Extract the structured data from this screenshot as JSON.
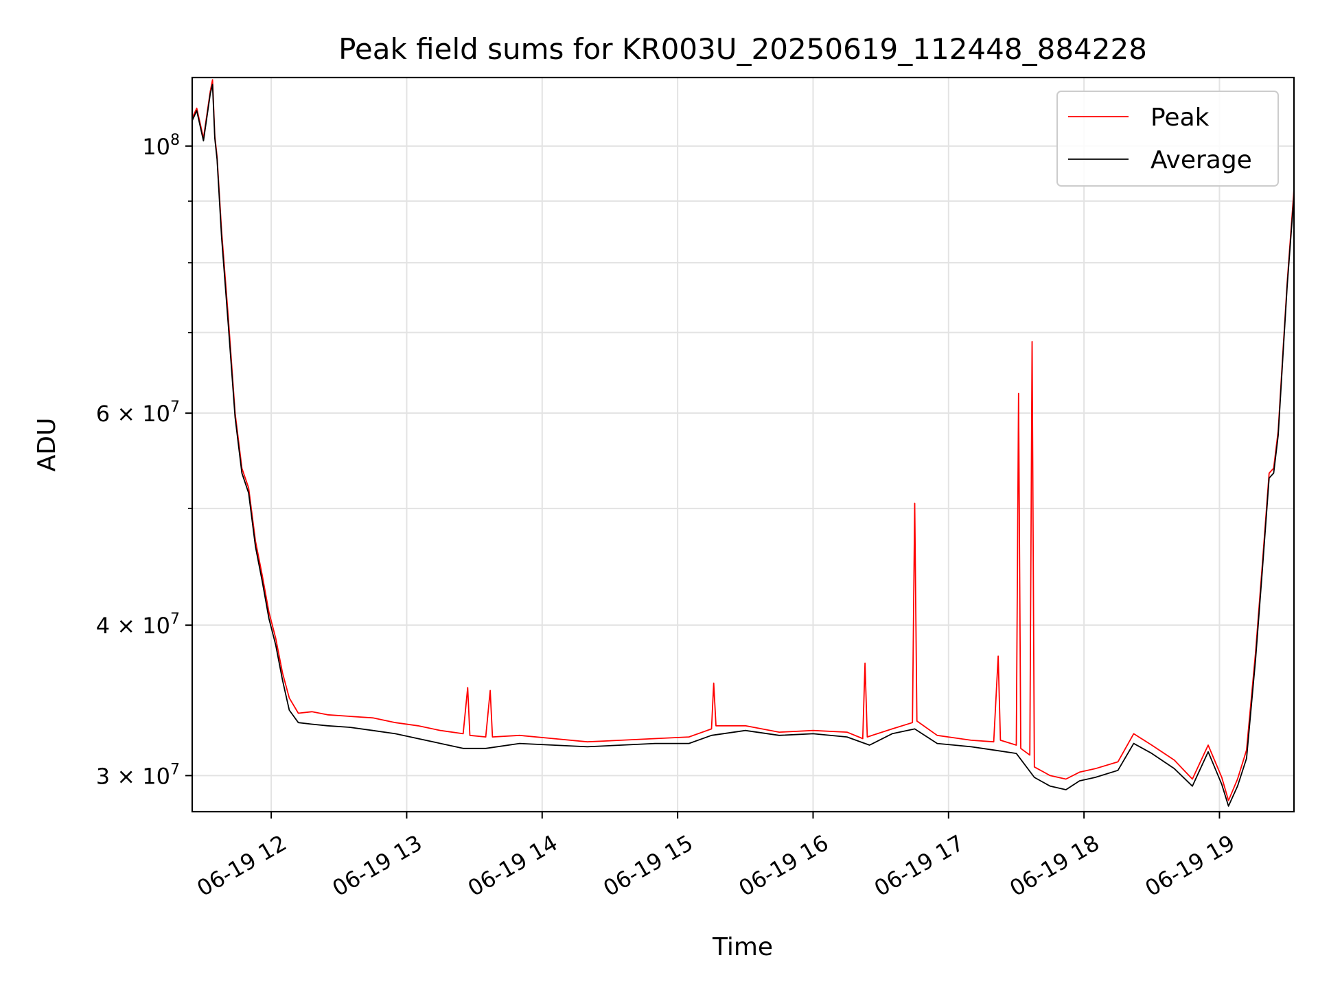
{
  "chart_data": {
    "type": "line",
    "title": "Peak field sums for KR003U_20250619_112448_884228",
    "xlabel": "Time",
    "ylabel": "ADU",
    "yscale": "log",
    "ylim": [
      28000000,
      114000000
    ],
    "xlim": [
      "2025-06-19 11:25",
      "2025-06-19 19:33"
    ],
    "grid": true,
    "legend_position": "top-right",
    "x_ticks": [
      {
        "value": "2025-06-19 12:00",
        "label": "06-19 12"
      },
      {
        "value": "2025-06-19 13:00",
        "label": "06-19 13"
      },
      {
        "value": "2025-06-19 14:00",
        "label": "06-19 14"
      },
      {
        "value": "2025-06-19 15:00",
        "label": "06-19 15"
      },
      {
        "value": "2025-06-19 16:00",
        "label": "06-19 16"
      },
      {
        "value": "2025-06-19 17:00",
        "label": "06-19 17"
      },
      {
        "value": "2025-06-19 18:00",
        "label": "06-19 18"
      },
      {
        "value": "2025-06-19 19:00",
        "label": "06-19 19"
      }
    ],
    "y_ticks_major": [
      {
        "value": 30000000,
        "mantissa": "3",
        "exponent": "7"
      },
      {
        "value": 40000000,
        "mantissa": "4",
        "exponent": "7"
      },
      {
        "value": 60000000,
        "mantissa": "6",
        "exponent": "7"
      },
      {
        "value": 100000000,
        "mantissa": "",
        "exponent": "8"
      }
    ],
    "y_ticks_minor": [
      50000000,
      70000000,
      80000000,
      90000000
    ],
    "series": [
      {
        "name": "Peak",
        "color": "#ff0000",
        "points": [
          [
            "2025-06-19 11:25",
            105500000
          ],
          [
            "2025-06-19 11:27",
            107500000
          ],
          [
            "2025-06-19 11:30",
            101500000
          ],
          [
            "2025-06-19 11:33",
            111000000
          ],
          [
            "2025-06-19 11:34",
            113500000
          ],
          [
            "2025-06-19 11:35",
            102000000
          ],
          [
            "2025-06-19 11:36",
            98000000
          ],
          [
            "2025-06-19 11:38",
            85000000
          ],
          [
            "2025-06-19 11:41",
            72000000
          ],
          [
            "2025-06-19 11:44",
            60000000
          ],
          [
            "2025-06-19 11:47",
            54000000
          ],
          [
            "2025-06-19 11:50",
            52000000
          ],
          [
            "2025-06-19 11:53",
            47000000
          ],
          [
            "2025-06-19 11:56",
            44000000
          ],
          [
            "2025-06-19 11:59",
            41000000
          ],
          [
            "2025-06-19 12:02",
            39000000
          ],
          [
            "2025-06-19 12:05",
            36500000
          ],
          [
            "2025-06-19 12:08",
            34800000
          ],
          [
            "2025-06-19 12:12",
            33800000
          ],
          [
            "2025-06-19 12:18",
            33900000
          ],
          [
            "2025-06-19 12:25",
            33700000
          ],
          [
            "2025-06-19 12:35",
            33600000
          ],
          [
            "2025-06-19 12:45",
            33500000
          ],
          [
            "2025-06-19 12:55",
            33200000
          ],
          [
            "2025-06-19 13:05",
            33000000
          ],
          [
            "2025-06-19 13:15",
            32700000
          ],
          [
            "2025-06-19 13:25",
            32500000
          ],
          [
            "2025-06-19 13:27",
            35500000
          ],
          [
            "2025-06-19 13:28",
            32400000
          ],
          [
            "2025-06-19 13:35",
            32300000
          ],
          [
            "2025-06-19 13:37",
            35300000
          ],
          [
            "2025-06-19 13:38",
            32300000
          ],
          [
            "2025-06-19 13:50",
            32400000
          ],
          [
            "2025-06-19 14:05",
            32200000
          ],
          [
            "2025-06-19 14:20",
            32000000
          ],
          [
            "2025-06-19 14:35",
            32100000
          ],
          [
            "2025-06-19 14:50",
            32200000
          ],
          [
            "2025-06-19 15:05",
            32300000
          ],
          [
            "2025-06-19 15:15",
            32800000
          ],
          [
            "2025-06-19 15:16",
            35800000
          ],
          [
            "2025-06-19 15:17",
            33000000
          ],
          [
            "2025-06-19 15:30",
            33000000
          ],
          [
            "2025-06-19 15:45",
            32600000
          ],
          [
            "2025-06-19 16:00",
            32700000
          ],
          [
            "2025-06-19 16:15",
            32600000
          ],
          [
            "2025-06-19 16:22",
            32200000
          ],
          [
            "2025-06-19 16:23",
            37200000
          ],
          [
            "2025-06-19 16:24",
            32300000
          ],
          [
            "2025-06-19 16:35",
            32800000
          ],
          [
            "2025-06-19 16:44",
            33200000
          ],
          [
            "2025-06-19 16:45",
            50500000
          ],
          [
            "2025-06-19 16:46",
            33300000
          ],
          [
            "2025-06-19 16:55",
            32400000
          ],
          [
            "2025-06-19 17:10",
            32100000
          ],
          [
            "2025-06-19 17:20",
            32000000
          ],
          [
            "2025-06-19 17:22",
            37700000
          ],
          [
            "2025-06-19 17:23",
            32100000
          ],
          [
            "2025-06-19 17:30",
            31800000
          ],
          [
            "2025-06-19 17:31",
            62300000
          ],
          [
            "2025-06-19 17:32",
            31600000
          ],
          [
            "2025-06-19 17:36",
            31200000
          ],
          [
            "2025-06-19 17:37",
            68800000
          ],
          [
            "2025-06-19 17:38",
            30500000
          ],
          [
            "2025-06-19 17:45",
            30000000
          ],
          [
            "2025-06-19 17:52",
            29800000
          ],
          [
            "2025-06-19 17:58",
            30200000
          ],
          [
            "2025-06-19 18:05",
            30400000
          ],
          [
            "2025-06-19 18:15",
            30800000
          ],
          [
            "2025-06-19 18:22",
            32500000
          ],
          [
            "2025-06-19 18:30",
            31800000
          ],
          [
            "2025-06-19 18:40",
            30900000
          ],
          [
            "2025-06-19 18:48",
            29800000
          ],
          [
            "2025-06-19 18:55",
            31800000
          ],
          [
            "2025-06-19 19:01",
            29900000
          ],
          [
            "2025-06-19 19:04",
            28600000
          ],
          [
            "2025-06-19 19:08",
            29800000
          ],
          [
            "2025-06-19 19:12",
            31500000
          ],
          [
            "2025-06-19 19:16",
            38000000
          ],
          [
            "2025-06-19 19:19",
            45000000
          ],
          [
            "2025-06-19 19:22",
            53500000
          ],
          [
            "2025-06-19 19:24",
            54000000
          ],
          [
            "2025-06-19 19:26",
            58000000
          ],
          [
            "2025-06-19 19:28",
            67000000
          ],
          [
            "2025-06-19 19:30",
            77000000
          ],
          [
            "2025-06-19 19:33",
            92000000
          ]
        ]
      },
      {
        "name": "Average",
        "color": "#000000",
        "points": [
          [
            "2025-06-19 11:25",
            105000000
          ],
          [
            "2025-06-19 11:27",
            107000000
          ],
          [
            "2025-06-19 11:30",
            101000000
          ],
          [
            "2025-06-19 11:33",
            110500000
          ],
          [
            "2025-06-19 11:34",
            112500000
          ],
          [
            "2025-06-19 11:35",
            101500000
          ],
          [
            "2025-06-19 11:36",
            97500000
          ],
          [
            "2025-06-19 11:38",
            84000000
          ],
          [
            "2025-06-19 11:41",
            71000000
          ],
          [
            "2025-06-19 11:44",
            59500000
          ],
          [
            "2025-06-19 11:47",
            53500000
          ],
          [
            "2025-06-19 11:50",
            51500000
          ],
          [
            "2025-06-19 11:53",
            46500000
          ],
          [
            "2025-06-19 11:56",
            43500000
          ],
          [
            "2025-06-19 11:59",
            40500000
          ],
          [
            "2025-06-19 12:02",
            38500000
          ],
          [
            "2025-06-19 12:05",
            36000000
          ],
          [
            "2025-06-19 12:08",
            34000000
          ],
          [
            "2025-06-19 12:12",
            33200000
          ],
          [
            "2025-06-19 12:18",
            33100000
          ],
          [
            "2025-06-19 12:25",
            33000000
          ],
          [
            "2025-06-19 12:35",
            32900000
          ],
          [
            "2025-06-19 12:45",
            32700000
          ],
          [
            "2025-06-19 12:55",
            32500000
          ],
          [
            "2025-06-19 13:05",
            32200000
          ],
          [
            "2025-06-19 13:15",
            31900000
          ],
          [
            "2025-06-19 13:25",
            31600000
          ],
          [
            "2025-06-19 13:35",
            31600000
          ],
          [
            "2025-06-19 13:50",
            31900000
          ],
          [
            "2025-06-19 14:05",
            31800000
          ],
          [
            "2025-06-19 14:20",
            31700000
          ],
          [
            "2025-06-19 14:35",
            31800000
          ],
          [
            "2025-06-19 14:50",
            31900000
          ],
          [
            "2025-06-19 15:05",
            31900000
          ],
          [
            "2025-06-19 15:15",
            32400000
          ],
          [
            "2025-06-19 15:30",
            32700000
          ],
          [
            "2025-06-19 15:45",
            32400000
          ],
          [
            "2025-06-19 16:00",
            32500000
          ],
          [
            "2025-06-19 16:15",
            32300000
          ],
          [
            "2025-06-19 16:25",
            31800000
          ],
          [
            "2025-06-19 16:35",
            32500000
          ],
          [
            "2025-06-19 16:45",
            32800000
          ],
          [
            "2025-06-19 16:55",
            31900000
          ],
          [
            "2025-06-19 17:10",
            31700000
          ],
          [
            "2025-06-19 17:20",
            31500000
          ],
          [
            "2025-06-19 17:30",
            31300000
          ],
          [
            "2025-06-19 17:38",
            29900000
          ],
          [
            "2025-06-19 17:45",
            29400000
          ],
          [
            "2025-06-19 17:52",
            29200000
          ],
          [
            "2025-06-19 17:58",
            29700000
          ],
          [
            "2025-06-19 18:05",
            29900000
          ],
          [
            "2025-06-19 18:15",
            30300000
          ],
          [
            "2025-06-19 18:22",
            31900000
          ],
          [
            "2025-06-19 18:30",
            31300000
          ],
          [
            "2025-06-19 18:40",
            30400000
          ],
          [
            "2025-06-19 18:48",
            29400000
          ],
          [
            "2025-06-19 18:55",
            31400000
          ],
          [
            "2025-06-19 19:01",
            29500000
          ],
          [
            "2025-06-19 19:04",
            28300000
          ],
          [
            "2025-06-19 19:08",
            29400000
          ],
          [
            "2025-06-19 19:12",
            31000000
          ],
          [
            "2025-06-19 19:16",
            37500000
          ],
          [
            "2025-06-19 19:19",
            44500000
          ],
          [
            "2025-06-19 19:22",
            53000000
          ],
          [
            "2025-06-19 19:24",
            53500000
          ],
          [
            "2025-06-19 19:26",
            57500000
          ],
          [
            "2025-06-19 19:28",
            66500000
          ],
          [
            "2025-06-19 19:30",
            76500000
          ],
          [
            "2025-06-19 19:33",
            91000000
          ]
        ]
      }
    ]
  }
}
